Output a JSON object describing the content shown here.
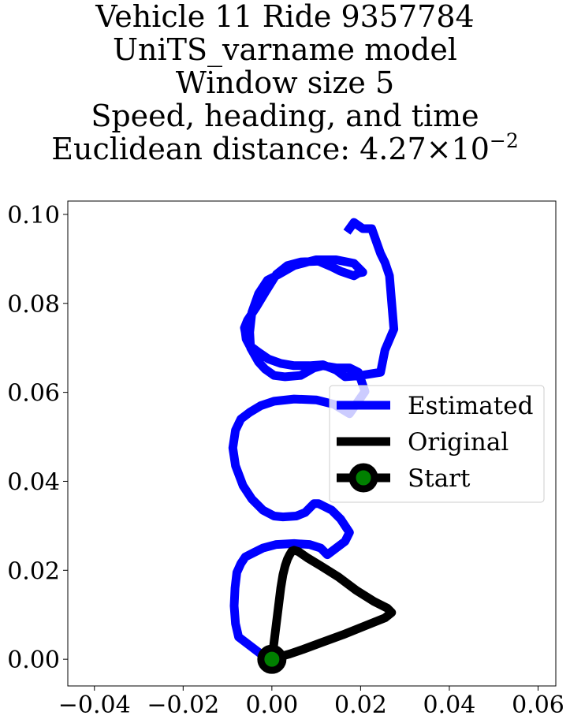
{
  "chart_data": {
    "type": "line",
    "title_lines": [
      "Vehicle 11 Ride 9357784",
      "UniTS_varname model",
      "Window size 5",
      "Speed, heading, and time"
    ],
    "title_metric_label": "Euclidean distance: ",
    "title_metric_mantissa": "4.27",
    "title_metric_times": "×",
    "title_metric_base": "10",
    "title_metric_exponent": "−2",
    "xlim": [
      -0.046,
      0.064
    ],
    "ylim": [
      -0.006,
      0.103
    ],
    "x_ticks": [
      -0.04,
      -0.02,
      0.0,
      0.02,
      0.04,
      0.06
    ],
    "x_tick_labels": [
      "−0.04",
      "−0.02",
      "0.00",
      "0.02",
      "0.04",
      "0.06"
    ],
    "y_ticks": [
      0.0,
      0.02,
      0.04,
      0.06,
      0.08,
      0.1
    ],
    "y_tick_labels": [
      "0.00",
      "0.02",
      "0.04",
      "0.06",
      "0.08",
      "0.10"
    ],
    "grid": false,
    "legend_position": "center-right",
    "series": [
      {
        "name": "Estimated",
        "color": "#0000ff",
        "x": [
          0.0,
          -0.0025,
          -0.0075,
          -0.0082,
          -0.0085,
          -0.0083,
          -0.0079,
          -0.007,
          -0.006,
          -0.004,
          -0.002,
          0.001,
          0.005,
          0.0085,
          0.011,
          0.0125,
          0.0165,
          0.0175,
          0.0155,
          0.0135,
          0.0115,
          0.0105,
          0.0095,
          0.0075,
          0.0055,
          0.0025,
          0.0005,
          -0.002,
          -0.0045,
          -0.0065,
          -0.0082,
          -0.0088,
          -0.0082,
          -0.007,
          -0.005,
          -0.0025,
          0.0005,
          0.005,
          0.01,
          0.014,
          0.0175,
          0.021,
          0.0195,
          0.0175,
          0.0145,
          0.0115,
          0.0095,
          0.0065,
          0.003,
          0.0005,
          -0.0015,
          -0.003,
          -0.0048,
          -0.005,
          -0.0045,
          -0.003,
          -0.001,
          0.0015,
          0.005,
          0.01,
          0.0145,
          0.0185,
          0.0205,
          0.0195,
          0.0185,
          0.0155,
          0.0135,
          0.0105,
          0.0065,
          0.0035,
          0.001,
          -0.0015,
          -0.0035,
          -0.0055,
          -0.0062,
          -0.006,
          -0.0058,
          -0.005,
          -0.003,
          -0.0008,
          0.002,
          0.005,
          0.0085,
          0.0115,
          0.0145,
          0.0165,
          0.0195,
          0.0245,
          0.0255,
          0.0275,
          0.0265,
          0.0255,
          0.0245,
          0.0225,
          0.0205,
          0.0185,
          0.0175
        ],
        "y": [
          0.0,
          0.0012,
          0.005,
          0.008,
          0.012,
          0.016,
          0.0195,
          0.0215,
          0.023,
          0.024,
          0.025,
          0.0258,
          0.026,
          0.0258,
          0.025,
          0.0235,
          0.0265,
          0.0285,
          0.0315,
          0.0335,
          0.0345,
          0.035,
          0.035,
          0.033,
          0.0322,
          0.032,
          0.0322,
          0.0335,
          0.036,
          0.039,
          0.0435,
          0.0475,
          0.0515,
          0.054,
          0.0555,
          0.057,
          0.058,
          0.0585,
          0.0583,
          0.0573,
          0.0552,
          0.0602,
          0.0645,
          0.0655,
          0.0655,
          0.066,
          0.0655,
          0.0638,
          0.0635,
          0.0638,
          0.0652,
          0.0668,
          0.07,
          0.0735,
          0.078,
          0.0822,
          0.0852,
          0.0865,
          0.0885,
          0.0898,
          0.0898,
          0.089,
          0.087,
          0.0868,
          0.0862,
          0.0872,
          0.0882,
          0.0895,
          0.0893,
          0.0885,
          0.0865,
          0.0825,
          0.0792,
          0.0762,
          0.0745,
          0.0735,
          0.072,
          0.0705,
          0.069,
          0.0675,
          0.0665,
          0.066,
          0.066,
          0.0662,
          0.065,
          0.0635,
          0.0637,
          0.0645,
          0.0695,
          0.0742,
          0.0862,
          0.0892,
          0.0912,
          0.0968,
          0.0968,
          0.0982,
          0.0968
        ]
      },
      {
        "name": "Original",
        "color": "#000000",
        "x": [
          0.0,
          0.0005,
          0.001,
          0.0015,
          0.002,
          0.0025,
          0.003,
          0.0035,
          0.004,
          0.0045,
          0.005,
          0.006,
          0.008,
          0.011,
          0.015,
          0.019,
          0.023,
          0.026,
          0.027,
          0.0255,
          0.021,
          0.016,
          0.011,
          0.007,
          0.004,
          0.0015,
          0.0
        ],
        "y": [
          0.0,
          0.004,
          0.008,
          0.012,
          0.016,
          0.019,
          0.021,
          0.0225,
          0.0235,
          0.0243,
          0.0245,
          0.0242,
          0.0228,
          0.021,
          0.0185,
          0.0155,
          0.013,
          0.0115,
          0.0105,
          0.0093,
          0.0075,
          0.0055,
          0.0037,
          0.0022,
          0.0012,
          0.0005,
          0.0
        ]
      },
      {
        "name": "Start",
        "marker_face": "#008000",
        "marker_edge": "#000000",
        "x": [
          0.0
        ],
        "y": [
          0.0
        ]
      }
    ]
  }
}
